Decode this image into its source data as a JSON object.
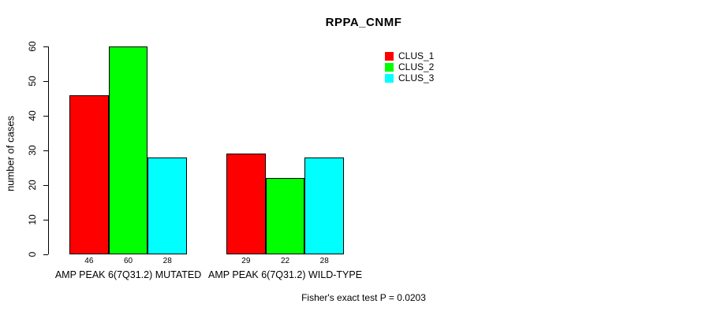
{
  "title": "RPPA_CNMF",
  "footer": "Fisher's exact test P = 0.0203",
  "legend": {
    "items": [
      {
        "label": "CLUS_1",
        "color": "#FF0000"
      },
      {
        "label": "CLUS_2",
        "color": "#00FF00"
      },
      {
        "label": "CLUS_3",
        "color": "#00FFFF"
      }
    ]
  },
  "chart_data": {
    "type": "bar",
    "title": "RPPA_CNMF",
    "xlabel": "",
    "ylabel": "number of cases",
    "categories": [
      "AMP PEAK 6(7Q31.2) MUTATED",
      "AMP PEAK 6(7Q31.2) WILD-TYPE"
    ],
    "series": [
      {
        "name": "CLUS_1",
        "color": "#FF0000",
        "values": [
          46,
          29
        ]
      },
      {
        "name": "CLUS_2",
        "color": "#00FF00",
        "values": [
          60,
          22
        ]
      },
      {
        "name": "CLUS_3",
        "color": "#00FFFF",
        "values": [
          28,
          28
        ]
      }
    ],
    "ylim": [
      0,
      60
    ],
    "yticks": [
      0,
      10,
      20,
      30,
      40,
      50,
      60
    ],
    "bar_value_labels": [
      [
        46,
        60,
        28
      ],
      [
        29,
        22,
        28
      ]
    ],
    "grid": false,
    "legend_position": "top-right",
    "annotation": "Fisher's exact test P = 0.0203"
  }
}
